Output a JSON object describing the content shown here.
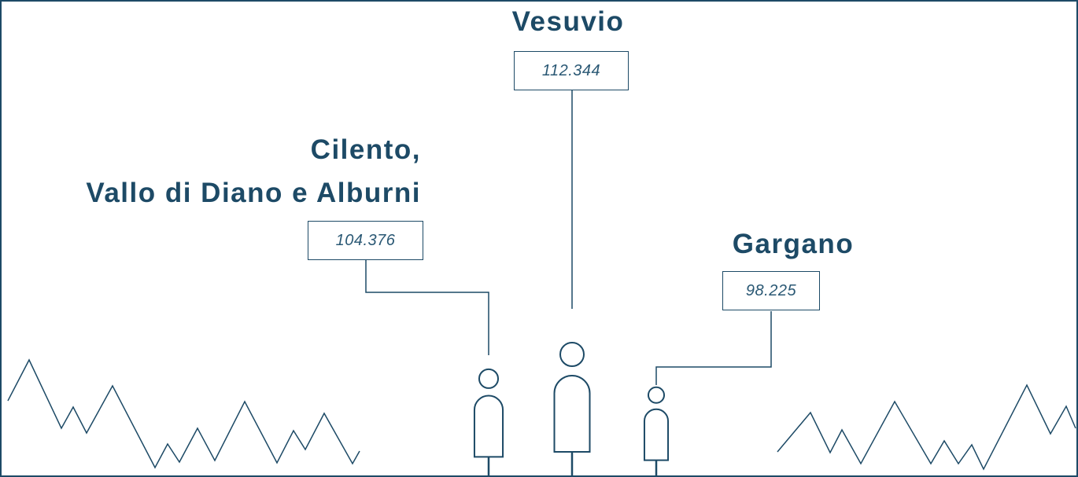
{
  "chart_data": {
    "type": "pictogram",
    "categories": [
      "Cilento,\nVallo di Diano e Alburni",
      "Vesuvio",
      "Gargano"
    ],
    "values": [
      104376,
      112344,
      98225
    ],
    "value_labels": [
      "104.376",
      "112.344",
      "98.225"
    ],
    "color": "#1d4a66"
  }
}
